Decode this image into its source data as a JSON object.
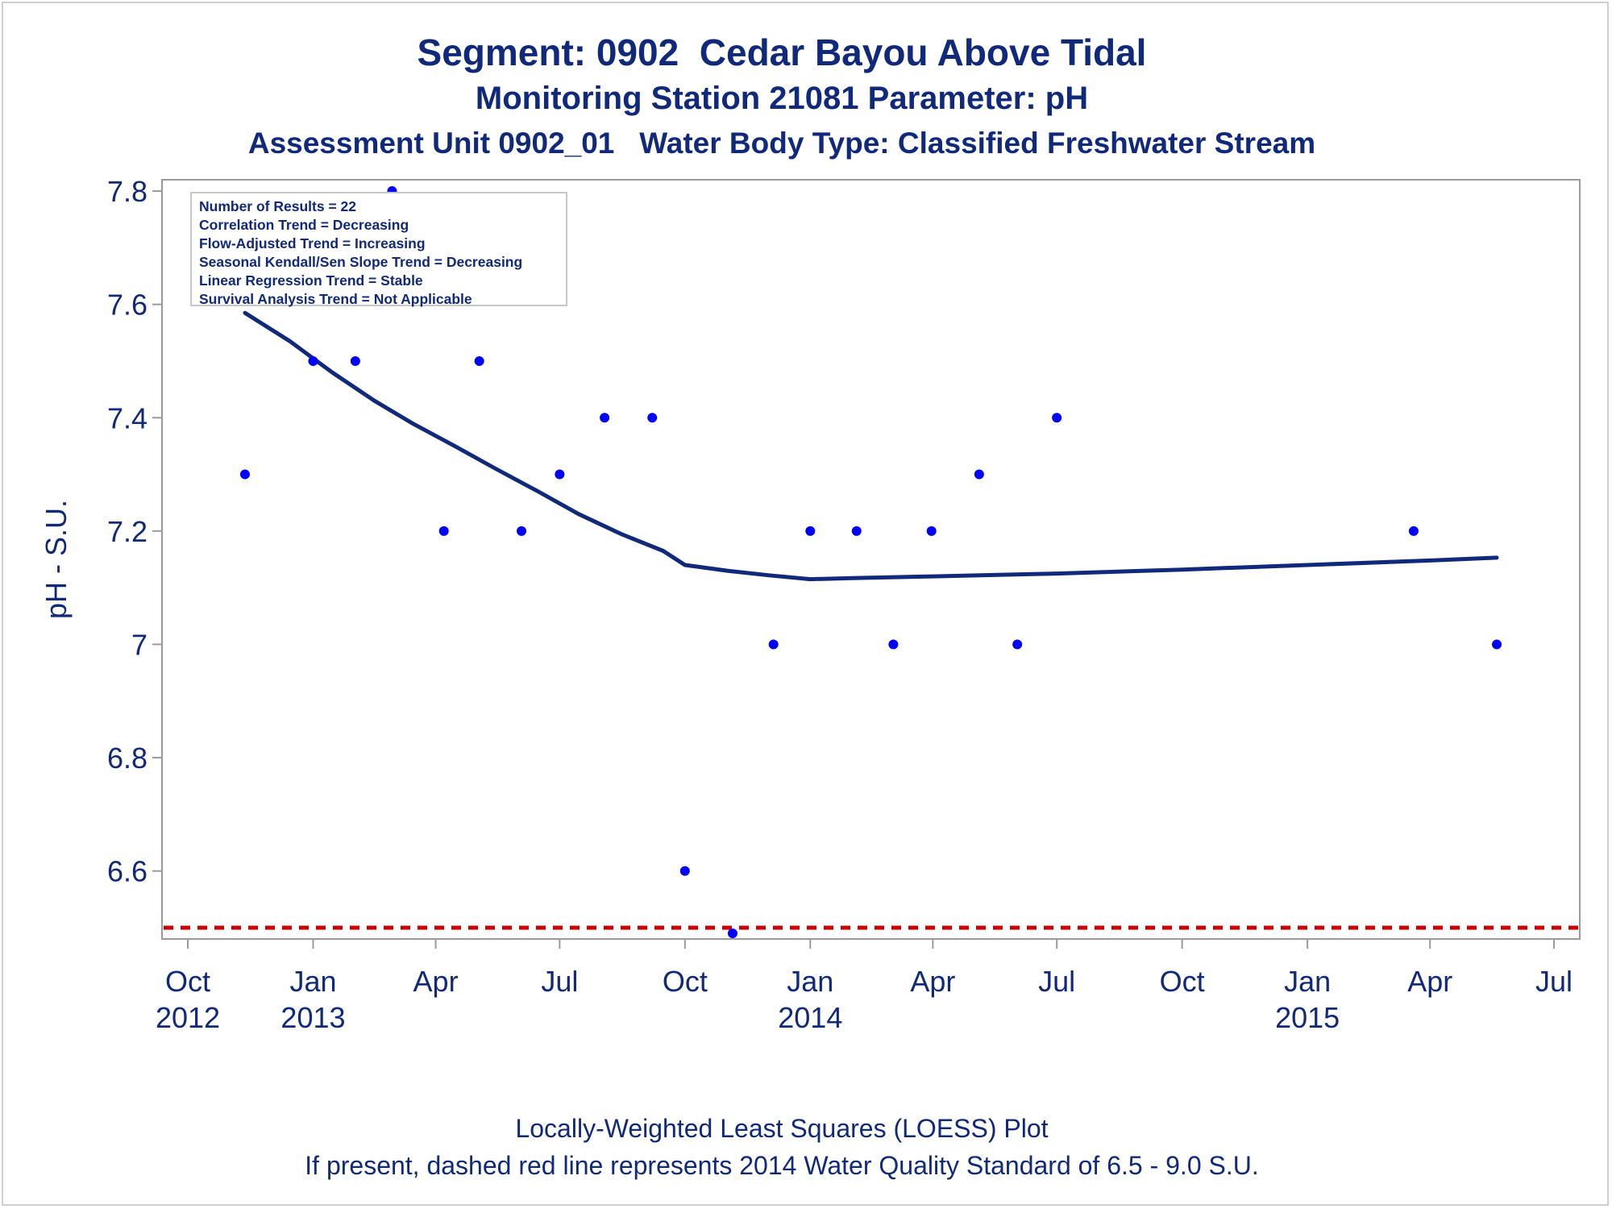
{
  "titles": {
    "line1": "Segment: 0902  Cedar Bayou Above Tidal",
    "line2": "Monitoring Station 21081 Parameter: pH",
    "line3": "Assessment Unit 0902_01   Water Body Type: Classified Freshwater Stream"
  },
  "footnotes": {
    "line1": "Locally-Weighted Least Squares (LOESS) Plot",
    "line2": "If present, dashed red line represents 2014 Water Quality Standard of 6.5 - 9.0 S.U."
  },
  "info_box": {
    "lines": [
      "Number of Results = 22",
      "Correlation Trend = Decreasing",
      "Flow-Adjusted Trend = Increasing",
      "Seasonal Kendall/Sen Slope Trend = Decreasing",
      "Linear Regression Trend = Stable",
      "Survival Analysis Trend = Not Applicable"
    ]
  },
  "chart_data": {
    "type": "scatter",
    "ylabel": "pH - S.U.",
    "xlabel": "",
    "ylim": [
      6.48,
      7.82
    ],
    "xlim": [
      "2012-10-01",
      "2015-07-01"
    ],
    "y_ticks": [
      6.6,
      6.8,
      7,
      7.2,
      7.4,
      7.6,
      7.8
    ],
    "y_tick_labels": [
      "6.6",
      "6.8",
      "7",
      "7.2",
      "7.4",
      "7.6",
      "7.8"
    ],
    "x_ticks": [
      {
        "date": "2012-10-01",
        "label": "Oct",
        "sublabel": "2012"
      },
      {
        "date": "2013-01-01",
        "label": "Jan",
        "sublabel": "2013"
      },
      {
        "date": "2013-04-01",
        "label": "Apr",
        "sublabel": ""
      },
      {
        "date": "2013-07-01",
        "label": "Jul",
        "sublabel": ""
      },
      {
        "date": "2013-10-01",
        "label": "Oct",
        "sublabel": ""
      },
      {
        "date": "2014-01-01",
        "label": "Jan",
        "sublabel": "2014"
      },
      {
        "date": "2014-04-01",
        "label": "Apr",
        "sublabel": ""
      },
      {
        "date": "2014-07-01",
        "label": "Jul",
        "sublabel": ""
      },
      {
        "date": "2014-10-01",
        "label": "Oct",
        "sublabel": ""
      },
      {
        "date": "2015-01-01",
        "label": "Jan",
        "sublabel": "2015"
      },
      {
        "date": "2015-04-01",
        "label": "Apr",
        "sublabel": ""
      },
      {
        "date": "2015-07-01",
        "label": "Jul",
        "sublabel": ""
      }
    ],
    "points": [
      {
        "x": "2012-11-12",
        "y": 7.3
      },
      {
        "x": "2013-01-01",
        "y": 7.5
      },
      {
        "x": "2013-02-01",
        "y": 7.5
      },
      {
        "x": "2013-02-28",
        "y": 7.8
      },
      {
        "x": "2013-04-07",
        "y": 7.2
      },
      {
        "x": "2013-05-03",
        "y": 7.5
      },
      {
        "x": "2013-06-03",
        "y": 7.2
      },
      {
        "x": "2013-07-01",
        "y": 7.3
      },
      {
        "x": "2013-08-03",
        "y": 7.4
      },
      {
        "x": "2013-09-07",
        "y": 7.4
      },
      {
        "x": "2013-10-01",
        "y": 6.6
      },
      {
        "x": "2013-11-05",
        "y": 6.49
      },
      {
        "x": "2013-12-05",
        "y": 7
      },
      {
        "x": "2014-01-01",
        "y": 7.2
      },
      {
        "x": "2014-02-04",
        "y": 7.2
      },
      {
        "x": "2014-03-03",
        "y": 7
      },
      {
        "x": "2014-03-31",
        "y": 7.2
      },
      {
        "x": "2014-05-05",
        "y": 7.3
      },
      {
        "x": "2014-06-02",
        "y": 7
      },
      {
        "x": "2014-07-01",
        "y": 7.4
      },
      {
        "x": "2015-03-20",
        "y": 7.2
      },
      {
        "x": "2015-05-20",
        "y": 7
      }
    ],
    "loess": [
      {
        "x": "2012-11-12",
        "y": 7.585
      },
      {
        "x": "2012-12-15",
        "y": 7.535
      },
      {
        "x": "2013-01-15",
        "y": 7.48
      },
      {
        "x": "2013-02-15",
        "y": 7.43
      },
      {
        "x": "2013-03-15",
        "y": 7.39
      },
      {
        "x": "2013-04-15",
        "y": 7.35
      },
      {
        "x": "2013-05-15",
        "y": 7.31
      },
      {
        "x": "2013-06-15",
        "y": 7.27
      },
      {
        "x": "2013-07-15",
        "y": 7.23
      },
      {
        "x": "2013-08-15",
        "y": 7.195
      },
      {
        "x": "2013-09-15",
        "y": 7.165
      },
      {
        "x": "2013-10-01",
        "y": 7.14
      },
      {
        "x": "2013-11-01",
        "y": 7.13
      },
      {
        "x": "2013-12-01",
        "y": 7.122
      },
      {
        "x": "2014-01-01",
        "y": 7.115
      },
      {
        "x": "2014-02-01",
        "y": 7.117
      },
      {
        "x": "2014-04-01",
        "y": 7.12
      },
      {
        "x": "2014-07-01",
        "y": 7.125
      },
      {
        "x": "2014-10-01",
        "y": 7.132
      },
      {
        "x": "2015-01-01",
        "y": 7.14
      },
      {
        "x": "2015-04-01",
        "y": 7.148
      },
      {
        "x": "2015-05-20",
        "y": 7.153
      }
    ],
    "reference_lines": [
      {
        "y": 6.5,
        "style": "dashed",
        "color": "#cc0000"
      }
    ],
    "colors": {
      "points": "#0000ff",
      "loess": "#10297a",
      "text": "#10297a",
      "frame": "#9a9a9a"
    }
  }
}
